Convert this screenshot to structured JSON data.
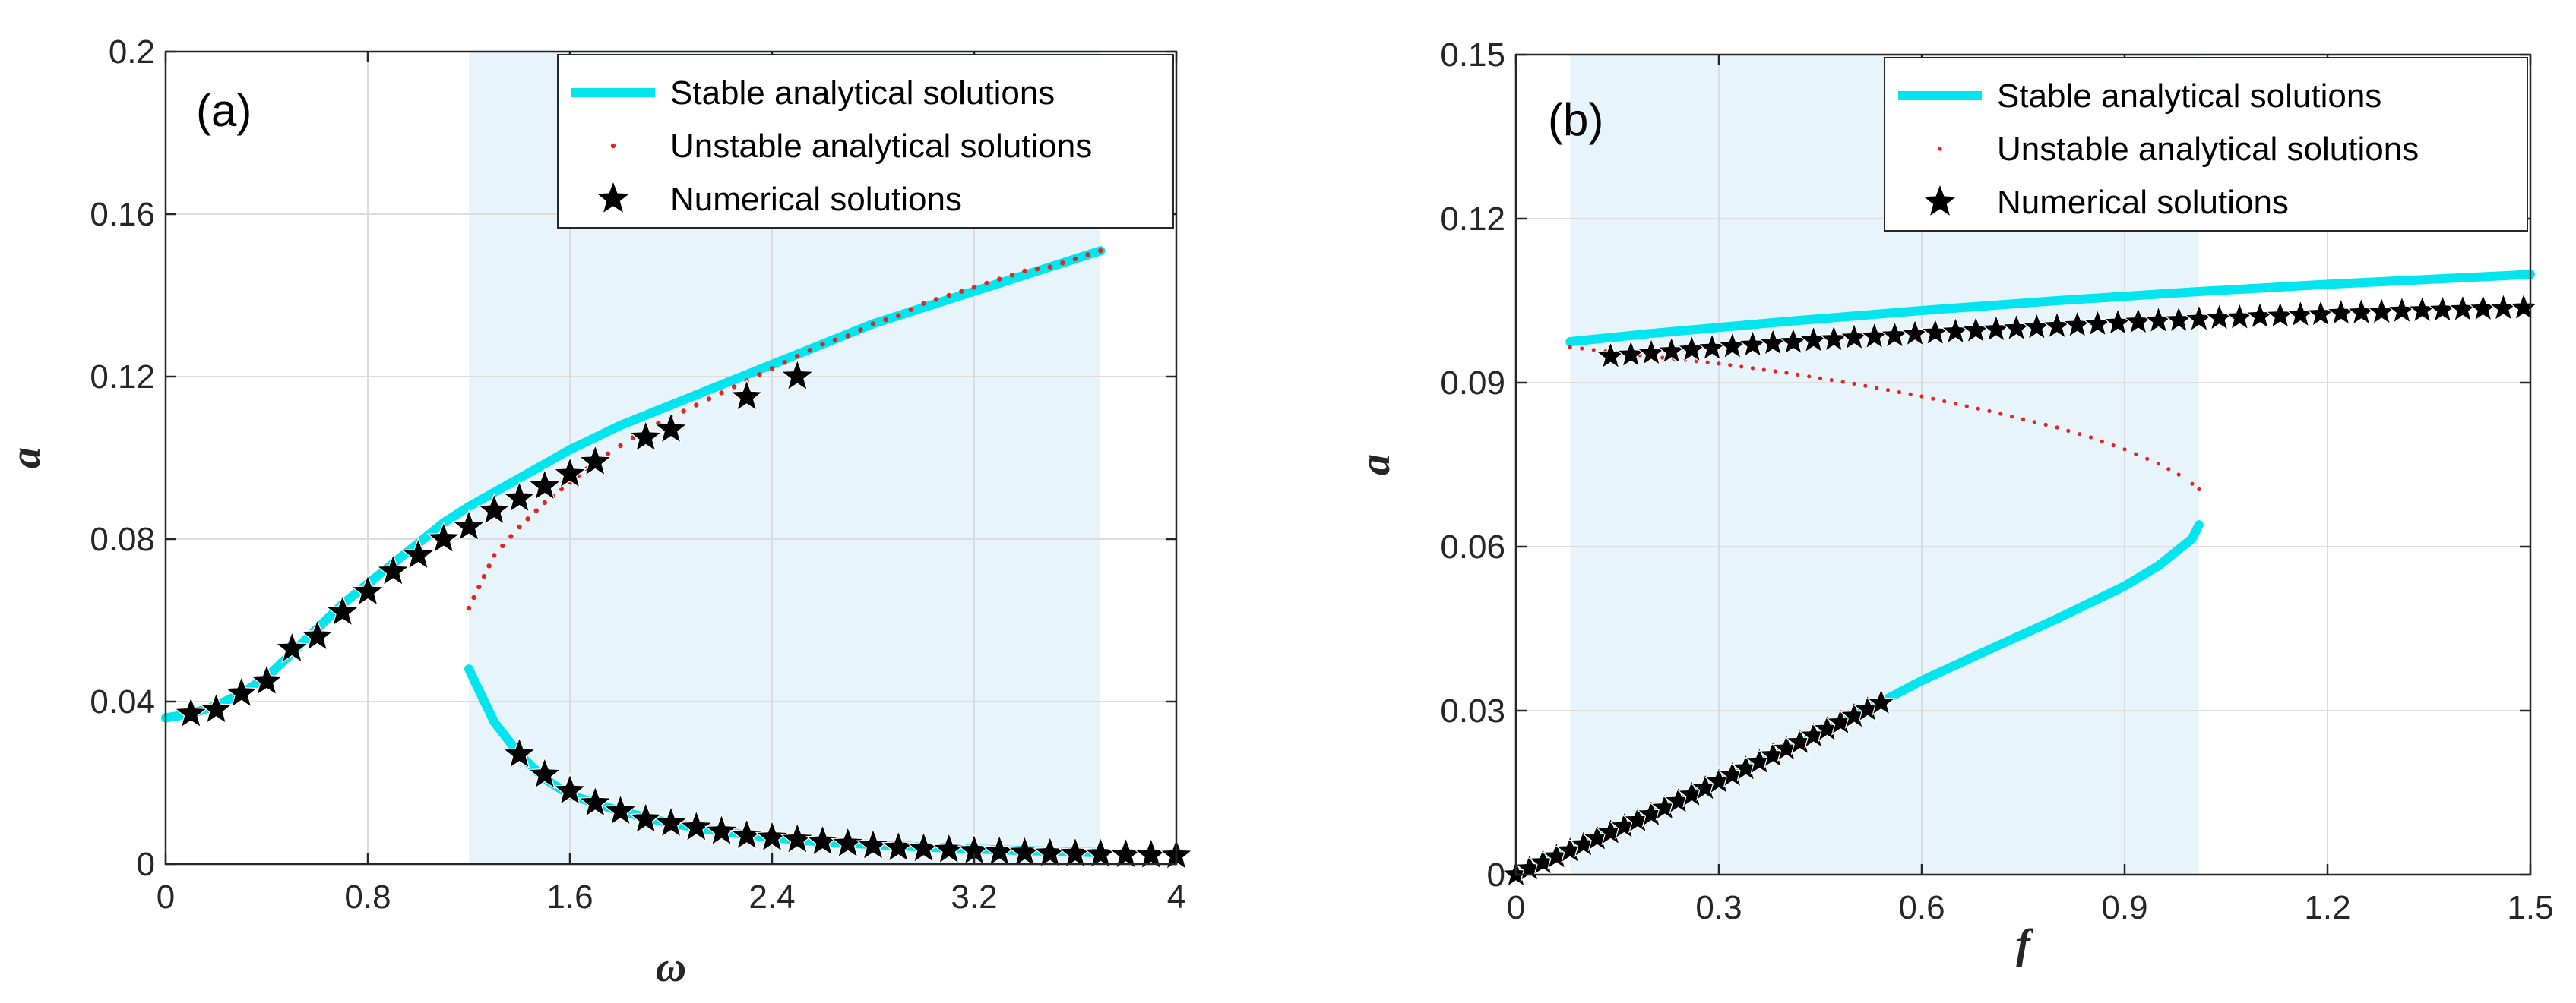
{
  "chart_data": [
    {
      "type": "line",
      "panel_label": "(a)",
      "xlabel": "ω",
      "ylabel": "a",
      "xlim": [
        0,
        4
      ],
      "ylim": [
        0,
        0.2
      ],
      "xticks": [
        0,
        0.8,
        1.6,
        2.4,
        3.2,
        4
      ],
      "xtick_labels": [
        "0",
        "0.8",
        "1.6",
        "2.4",
        "3.2",
        "4"
      ],
      "yticks": [
        0,
        0.04,
        0.08,
        0.12,
        0.16,
        0.2
      ],
      "ytick_labels": [
        "0",
        "0.04",
        "0.08",
        "0.12",
        "0.16",
        "0.2"
      ],
      "grid": true,
      "shaded_region_x": [
        1.2,
        3.7
      ],
      "legend_position": "top-right",
      "legend": [
        "Stable analytical solutions",
        "Unstable analytical solutions",
        "Numerical solutions"
      ],
      "colors": {
        "stable": "#00e5ee",
        "unstable": "#e8231f",
        "numerical": "#000000",
        "shade": "#e8f4fc"
      },
      "series": [
        {
          "name": "Stable analytical solutions",
          "style": "line",
          "segments": [
            {
              "x": [
                0,
                0.1,
                0.2,
                0.3,
                0.4,
                0.5,
                0.6,
                0.7,
                0.8,
                0.9,
                1.0,
                1.1,
                1.2,
                1.4,
                1.6,
                1.8,
                2.0,
                2.2,
                2.4,
                2.6,
                2.8,
                3.0,
                3.2,
                3.4,
                3.6,
                3.7
              ],
              "y": [
                0.036,
                0.037,
                0.039,
                0.042,
                0.046,
                0.052,
                0.058,
                0.064,
                0.069,
                0.074,
                0.079,
                0.084,
                0.088,
                0.095,
                0.102,
                0.108,
                0.113,
                0.118,
                0.123,
                0.128,
                0.133,
                0.137,
                0.141,
                0.145,
                0.149,
                0.151
              ]
            },
            {
              "x": [
                1.2,
                1.3,
                1.4,
                1.5,
                1.6,
                1.8,
                2.0,
                2.2,
                2.4,
                2.6,
                2.8,
                3.0,
                3.2,
                3.4,
                3.7
              ],
              "y": [
                0.048,
                0.035,
                0.027,
                0.021,
                0.017,
                0.013,
                0.01,
                0.008,
                0.0065,
                0.0055,
                0.0048,
                0.0042,
                0.0037,
                0.0033,
                0.0028
              ]
            }
          ]
        },
        {
          "name": "Unstable analytical solutions",
          "style": "dots",
          "x": [
            1.2,
            1.3,
            1.4,
            1.5,
            1.6,
            1.7,
            1.8,
            1.9,
            2.0,
            2.1,
            2.2,
            2.3,
            2.4,
            2.5,
            2.6,
            2.7,
            2.8,
            2.9,
            3.0,
            3.1,
            3.2,
            3.3,
            3.4,
            3.5,
            3.6,
            3.7
          ],
          "y": [
            0.063,
            0.076,
            0.083,
            0.089,
            0.094,
            0.099,
            0.103,
            0.107,
            0.11,
            0.113,
            0.116,
            0.119,
            0.122,
            0.125,
            0.128,
            0.13,
            0.133,
            0.135,
            0.138,
            0.14,
            0.142,
            0.144,
            0.146,
            0.147,
            0.149,
            0.151
          ]
        },
        {
          "name": "Numerical solutions",
          "style": "markers",
          "x": [
            0.1,
            0.2,
            0.3,
            0.4,
            0.5,
            0.6,
            0.7,
            0.8,
            0.9,
            1.0,
            1.1,
            1.2,
            1.3,
            1.4,
            1.5,
            1.6,
            1.7,
            1.9,
            2.0,
            2.3,
            2.5,
            1.4,
            1.5,
            1.6,
            1.7,
            1.8,
            1.9,
            2.0,
            2.1,
            2.2,
            2.3,
            2.4,
            2.5,
            2.6,
            2.7,
            2.8,
            2.9,
            3.0,
            3.1,
            3.2,
            3.3,
            3.4,
            3.5,
            3.6,
            3.7,
            3.8,
            3.9,
            4.0
          ],
          "y": [
            0.037,
            0.038,
            0.042,
            0.045,
            0.053,
            0.056,
            0.062,
            0.067,
            0.072,
            0.076,
            0.08,
            0.083,
            0.087,
            0.09,
            0.093,
            0.096,
            0.099,
            0.105,
            0.107,
            0.115,
            0.12,
            0.027,
            0.022,
            0.018,
            0.015,
            0.013,
            0.011,
            0.01,
            0.009,
            0.008,
            0.007,
            0.0065,
            0.006,
            0.0055,
            0.005,
            0.0045,
            0.004,
            0.0038,
            0.0035,
            0.0032,
            0.003,
            0.0028,
            0.0026,
            0.0025,
            0.0024,
            0.0023,
            0.0022,
            0.0021
          ]
        }
      ]
    },
    {
      "type": "line",
      "panel_label": "(b)",
      "xlabel": "f",
      "ylabel": "a",
      "xlim": [
        0,
        1.5
      ],
      "ylim": [
        0,
        0.15
      ],
      "xticks": [
        0,
        0.3,
        0.6,
        0.9,
        1.2,
        1.5
      ],
      "xtick_labels": [
        "0",
        "0.3",
        "0.6",
        "0.9",
        "1.2",
        "1.5"
      ],
      "yticks": [
        0,
        0.03,
        0.06,
        0.09,
        0.12,
        0.15
      ],
      "ytick_labels": [
        "0",
        "0.03",
        "0.06",
        "0.09",
        "0.12",
        "0.15"
      ],
      "grid": true,
      "shaded_region_x": [
        0.08,
        1.01
      ],
      "legend_position": "top-right",
      "legend": [
        "Stable analytical solutions",
        "Unstable analytical solutions",
        "Numerical solutions"
      ],
      "colors": {
        "stable": "#00e5ee",
        "unstable": "#e8231f",
        "numerical": "#000000",
        "shade": "#e8f4fc"
      },
      "series": [
        {
          "name": "Stable analytical solutions",
          "style": "line",
          "segments": [
            {
              "x": [
                0.08,
                0.2,
                0.4,
                0.6,
                0.8,
                1.0,
                1.2,
                1.4,
                1.5
              ],
              "y": [
                0.0975,
                0.099,
                0.1012,
                0.1032,
                0.105,
                0.1066,
                0.108,
                0.1092,
                0.1098
              ]
            },
            {
              "x": [
                0,
                0.1,
                0.2,
                0.3,
                0.4,
                0.5,
                0.6,
                0.7,
                0.8,
                0.9,
                0.95,
                1.0,
                1.01
              ],
              "y": [
                0,
                0.0055,
                0.011,
                0.0168,
                0.0228,
                0.029,
                0.0355,
                0.0412,
                0.0468,
                0.0528,
                0.0565,
                0.0615,
                0.064
              ]
            }
          ]
        },
        {
          "name": "Unstable analytical solutions",
          "style": "dots",
          "x": [
            0.08,
            0.15,
            0.2,
            0.3,
            0.4,
            0.5,
            0.6,
            0.7,
            0.8,
            0.85,
            0.9,
            0.95,
            0.98,
            1.0,
            1.01
          ],
          "y": [
            0.0965,
            0.0955,
            0.0948,
            0.0935,
            0.0918,
            0.0898,
            0.0875,
            0.0848,
            0.0818,
            0.08,
            0.0778,
            0.0752,
            0.0732,
            0.0715,
            0.0705
          ]
        },
        {
          "name": "Numerical solutions",
          "style": "markers",
          "x": [
            0.14,
            0.17,
            0.2,
            0.23,
            0.26,
            0.29,
            0.32,
            0.35,
            0.38,
            0.41,
            0.44,
            0.47,
            0.5,
            0.53,
            0.56,
            0.59,
            0.62,
            0.65,
            0.68,
            0.71,
            0.74,
            0.77,
            0.8,
            0.83,
            0.86,
            0.89,
            0.92,
            0.95,
            0.98,
            1.01,
            1.04,
            1.07,
            1.1,
            1.13,
            1.16,
            1.19,
            1.22,
            1.25,
            1.28,
            1.31,
            1.34,
            1.37,
            1.4,
            1.43,
            1.46,
            1.49,
            0,
            0.02,
            0.04,
            0.06,
            0.08,
            0.1,
            0.12,
            0.14,
            0.16,
            0.18,
            0.2,
            0.22,
            0.24,
            0.26,
            0.28,
            0.3,
            0.32,
            0.34,
            0.36,
            0.38,
            0.4,
            0.42,
            0.44,
            0.46,
            0.48,
            0.5,
            0.52,
            0.54
          ],
          "y": [
            0.0948,
            0.0951,
            0.0954,
            0.0957,
            0.096,
            0.0963,
            0.0966,
            0.0969,
            0.0972,
            0.0974,
            0.0977,
            0.0979,
            0.0982,
            0.0984,
            0.0986,
            0.0989,
            0.0991,
            0.0993,
            0.0995,
            0.0997,
            0.0999,
            0.1001,
            0.1003,
            0.1005,
            0.1007,
            0.1009,
            0.1011,
            0.1013,
            0.1014,
            0.1016,
            0.1018,
            0.1019,
            0.1021,
            0.1022,
            0.1024,
            0.1025,
            0.1027,
            0.1028,
            0.1029,
            0.1031,
            0.1032,
            0.1033,
            0.1034,
            0.1035,
            0.1036,
            0.1037,
            0,
            0.0011,
            0.0022,
            0.0033,
            0.0044,
            0.0055,
            0.0066,
            0.0077,
            0.0088,
            0.0099,
            0.011,
            0.0122,
            0.0134,
            0.0146,
            0.0158,
            0.017,
            0.0182,
            0.0194,
            0.0206,
            0.0218,
            0.023,
            0.0242,
            0.0254,
            0.0266,
            0.0278,
            0.029,
            0.0302,
            0.0314
          ]
        }
      ]
    }
  ]
}
